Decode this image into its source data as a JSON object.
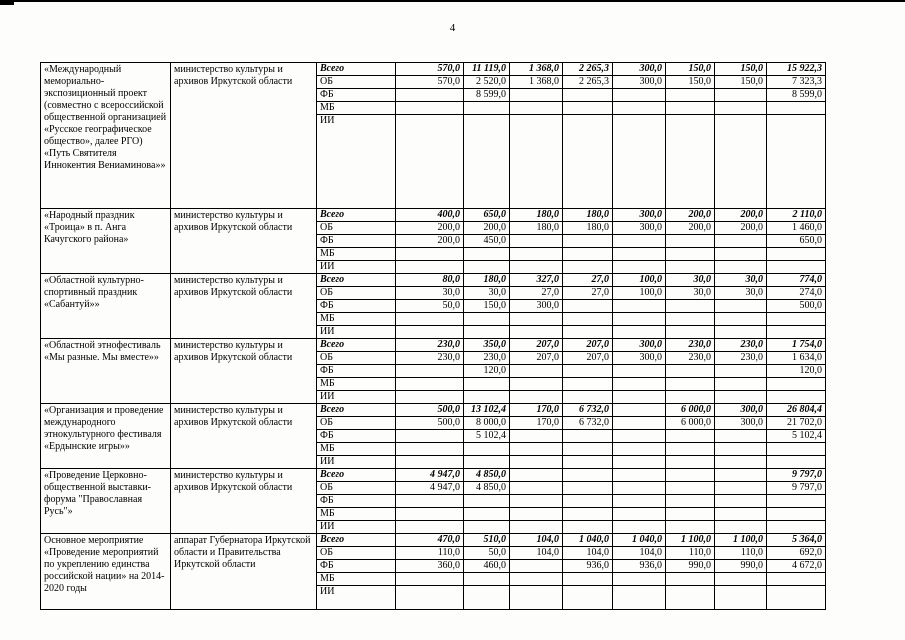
{
  "page": {
    "number": "4"
  },
  "table": {
    "funding_labels": [
      "Всего",
      "ОБ",
      "ФБ",
      "МБ",
      "ИИ"
    ],
    "blocks": [
      {
        "name": "«Международный мемориально-экспозиционный проект (совместно с всероссийской общественной организацией «Русское географическое общество», далее РГО) «Путь Святителя Иннокентия Вениаминова»»",
        "executor": "министерство культуры и архивов Иркутской области",
        "rows": [
          {
            "label": "Всего",
            "values": [
              "570,0",
              "11 119,0",
              "1 368,0",
              "2 265,3",
              "300,0",
              "150,0",
              "150,0",
              "15 922,3"
            ]
          },
          {
            "label": "ОБ",
            "values": [
              "570,0",
              "2 520,0",
              "1 368,0",
              "2 265,3",
              "300,0",
              "150,0",
              "150,0",
              "7 323,3"
            ]
          },
          {
            "label": "ФБ",
            "values": [
              "",
              "8 599,0",
              "",
              "",
              "",
              "",
              "",
              "8 599,0"
            ]
          },
          {
            "label": "МБ",
            "values": [
              "",
              "",
              "",
              "",
              "",
              "",
              "",
              ""
            ]
          },
          {
            "label": "ИИ",
            "values": [
              "",
              "",
              "",
              "",
              "",
              "",
              "",
              ""
            ]
          }
        ]
      },
      {
        "name": "«Народный праздник «Троица» в п. Анга Качугского района»",
        "executor": "министерство культуры и архивов Иркутской области",
        "rows": [
          {
            "label": "Всего",
            "values": [
              "400,0",
              "650,0",
              "180,0",
              "180,0",
              "300,0",
              "200,0",
              "200,0",
              "2 110,0"
            ]
          },
          {
            "label": "ОБ",
            "values": [
              "200,0",
              "200,0",
              "180,0",
              "180,0",
              "300,0",
              "200,0",
              "200,0",
              "1 460,0"
            ]
          },
          {
            "label": "ФБ",
            "values": [
              "200,0",
              "450,0",
              "",
              "",
              "",
              "",
              "",
              "650,0"
            ]
          },
          {
            "label": "МБ",
            "values": [
              "",
              "",
              "",
              "",
              "",
              "",
              "",
              ""
            ]
          },
          {
            "label": "ИИ",
            "values": [
              "",
              "",
              "",
              "",
              "",
              "",
              "",
              ""
            ]
          }
        ]
      },
      {
        "name": "«Областной культурно-спортивный праздник «Сабантуй»»",
        "executor": "министерство культуры и архивов Иркутской области",
        "rows": [
          {
            "label": "Всего",
            "values": [
              "80,0",
              "180,0",
              "327,0",
              "27,0",
              "100,0",
              "30,0",
              "30,0",
              "774,0"
            ]
          },
          {
            "label": "ОБ",
            "values": [
              "30,0",
              "30,0",
              "27,0",
              "27,0",
              "100,0",
              "30,0",
              "30,0",
              "274,0"
            ]
          },
          {
            "label": "ФБ",
            "values": [
              "50,0",
              "150,0",
              "300,0",
              "",
              "",
              "",
              "",
              "500,0"
            ]
          },
          {
            "label": "МБ",
            "values": [
              "",
              "",
              "",
              "",
              "",
              "",
              "",
              ""
            ]
          },
          {
            "label": "ИИ",
            "values": [
              "",
              "",
              "",
              "",
              "",
              "",
              "",
              ""
            ]
          }
        ]
      },
      {
        "name": "«Областной этнофестиваль «Мы разные. Мы вместе»»",
        "executor": "министерство культуры и архивов Иркутской области",
        "rows": [
          {
            "label": "Всего",
            "values": [
              "230,0",
              "350,0",
              "207,0",
              "207,0",
              "300,0",
              "230,0",
              "230,0",
              "1 754,0"
            ]
          },
          {
            "label": "ОБ",
            "values": [
              "230,0",
              "230,0",
              "207,0",
              "207,0",
              "300,0",
              "230,0",
              "230,0",
              "1 634,0"
            ]
          },
          {
            "label": "ФБ",
            "values": [
              "",
              "120,0",
              "",
              "",
              "",
              "",
              "",
              "120,0"
            ]
          },
          {
            "label": "МБ",
            "values": [
              "",
              "",
              "",
              "",
              "",
              "",
              "",
              ""
            ]
          },
          {
            "label": "ИИ",
            "values": [
              "",
              "",
              "",
              "",
              "",
              "",
              "",
              ""
            ]
          }
        ]
      },
      {
        "name": "«Организация и проведение международного этнокультурного фестиваля «Ердынские игры»»",
        "executor": "министерство культуры и архивов Иркутской области",
        "rows": [
          {
            "label": "Всего",
            "values": [
              "500,0",
              "13 102,4",
              "170,0",
              "6 732,0",
              "",
              "6 000,0",
              "300,0",
              "26 804,4"
            ]
          },
          {
            "label": "ОБ",
            "values": [
              "500,0",
              "8 000,0",
              "170,0",
              "6 732,0",
              "",
              "6 000,0",
              "300,0",
              "21 702,0"
            ]
          },
          {
            "label": "ФБ",
            "values": [
              "",
              "5 102,4",
              "",
              "",
              "",
              "",
              "",
              "5 102,4"
            ]
          },
          {
            "label": "МБ",
            "values": [
              "",
              "",
              "",
              "",
              "",
              "",
              "",
              ""
            ]
          },
          {
            "label": "ИИ",
            "values": [
              "",
              "",
              "",
              "",
              "",
              "",
              "",
              ""
            ]
          }
        ]
      },
      {
        "name": "«Проведение Церковно-общественной выставки-форума \"Православная Русь\"»",
        "executor": "министерство культуры и архивов Иркутской области",
        "rows": [
          {
            "label": "Всего",
            "values": [
              "4 947,0",
              "4 850,0",
              "",
              "",
              "",
              "",
              "",
              "9 797,0"
            ]
          },
          {
            "label": "ОБ",
            "values": [
              "4 947,0",
              "4 850,0",
              "",
              "",
              "",
              "",
              "",
              "9 797,0"
            ]
          },
          {
            "label": "ФБ",
            "values": [
              "",
              "",
              "",
              "",
              "",
              "",
              "",
              ""
            ]
          },
          {
            "label": "МБ",
            "values": [
              "",
              "",
              "",
              "",
              "",
              "",
              "",
              ""
            ]
          },
          {
            "label": "ИИ",
            "values": [
              "",
              "",
              "",
              "",
              "",
              "",
              "",
              ""
            ]
          }
        ]
      },
      {
        "name": "Основное мероприятие «Проведение мероприятий по укреплению единства российской нации» на 2014-2020 годы",
        "executor": "аппарат Губернатора Иркутской области и Правительства Иркутской области",
        "rows": [
          {
            "label": "Всего",
            "values": [
              "470,0",
              "510,0",
              "104,0",
              "1 040,0",
              "1 040,0",
              "1 100,0",
              "1 100,0",
              "5 364,0"
            ]
          },
          {
            "label": "ОБ",
            "values": [
              "110,0",
              "50,0",
              "104,0",
              "104,0",
              "104,0",
              "110,0",
              "110,0",
              "692,0"
            ]
          },
          {
            "label": "ФБ",
            "values": [
              "360,0",
              "460,0",
              "",
              "936,0",
              "936,0",
              "990,0",
              "990,0",
              "4 672,0"
            ]
          },
          {
            "label": "МБ",
            "values": [
              "",
              "",
              "",
              "",
              "",
              "",
              "",
              ""
            ]
          },
          {
            "label": "ИИ",
            "values": [
              "",
              "",
              "",
              "",
              "",
              "",
              "",
              ""
            ]
          }
        ]
      }
    ]
  }
}
